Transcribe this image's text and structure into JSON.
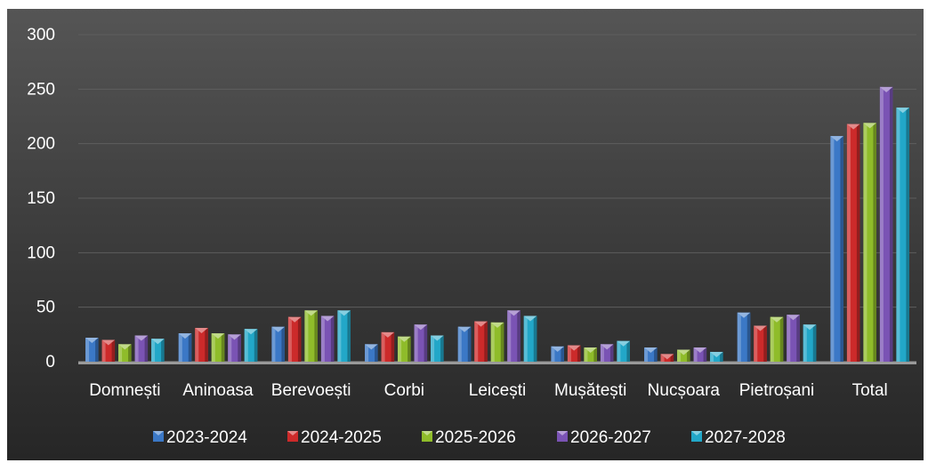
{
  "chart_data": {
    "type": "bar",
    "title": "",
    "xlabel": "",
    "ylabel": "",
    "ylim": [
      0,
      300
    ],
    "yticks": [
      0,
      50,
      100,
      150,
      200,
      250,
      300
    ],
    "grid": true,
    "legend_position": "bottom",
    "categories": [
      "Domnești",
      "Aninoasa",
      "Berevoești",
      "Corbi",
      "Leicești",
      "Mușătești",
      "Nucșoara",
      "Pietroșani",
      "Total"
    ],
    "series": [
      {
        "name": "2023-2024",
        "color": "#3b78c6",
        "values": [
          22,
          26,
          32,
          16,
          32,
          14,
          13,
          45,
          207
        ]
      },
      {
        "name": "2024-2025",
        "color": "#cc2a2a",
        "values": [
          20,
          31,
          41,
          27,
          37,
          15,
          7,
          33,
          218
        ]
      },
      {
        "name": "2025-2026",
        "color": "#8fbc2a",
        "values": [
          16,
          26,
          47,
          23,
          36,
          13,
          11,
          41,
          219
        ]
      },
      {
        "name": "2026-2027",
        "color": "#7a53b4",
        "values": [
          24,
          25,
          42,
          34,
          47,
          16,
          13,
          43,
          252
        ]
      },
      {
        "name": "2027-2028",
        "color": "#22a7c8",
        "values": [
          21,
          30,
          47,
          24,
          42,
          19,
          9,
          34,
          233
        ]
      }
    ]
  }
}
